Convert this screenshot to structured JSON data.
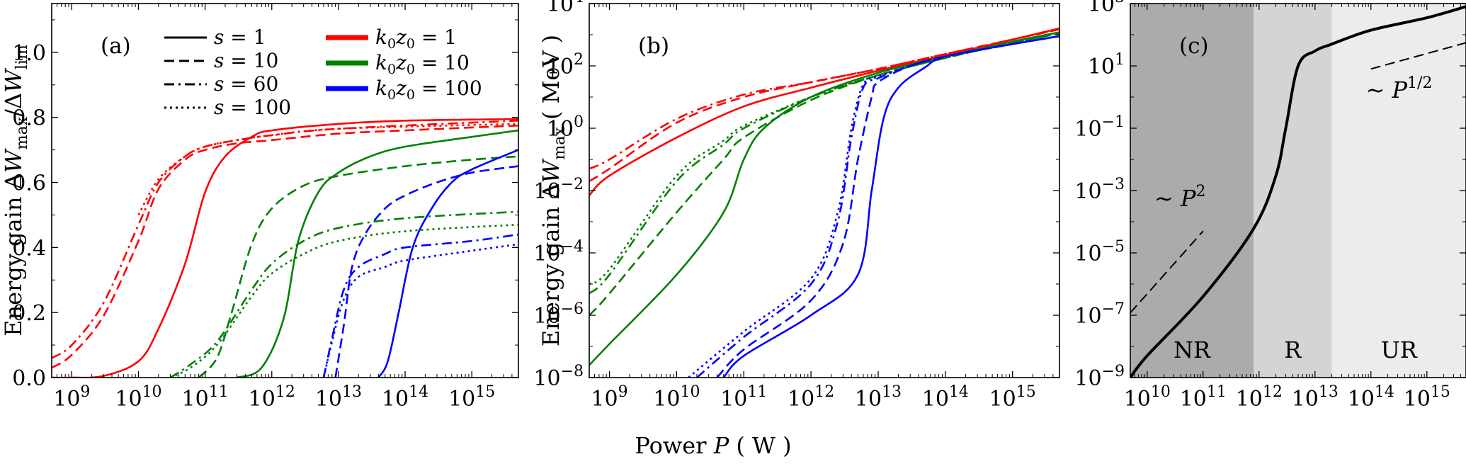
{
  "figure": {
    "x_label": "Power P ( W )"
  },
  "chart_data": [
    {
      "type": "line",
      "panel_label": "(a)",
      "ylabel": "Energy gain ΔW_max / ΔW_lim",
      "x_scale": "log",
      "xlim": [
        500000000.0,
        5000000000000000.0
      ],
      "ylim": [
        0,
        1.15
      ],
      "xticks": [
        "10^9",
        "10^10",
        "10^11",
        "10^12",
        "10^13",
        "10^14",
        "10^15"
      ],
      "yticks": [
        "0.0",
        "0.2",
        "0.4",
        "0.6",
        "0.8",
        "1.0"
      ],
      "legend_styles": [
        {
          "label": "s = 1",
          "dash": "solid"
        },
        {
          "label": "s = 10",
          "dash": "dashed"
        },
        {
          "label": "s = 60",
          "dash": "dashdot"
        },
        {
          "label": "s = 100",
          "dash": "dotted"
        }
      ],
      "legend_colors": [
        {
          "label": "k₀z₀ = 1",
          "color": "#ff0000"
        },
        {
          "label": "k₀z₀ = 10",
          "color": "#008000"
        },
        {
          "label": "k₀z₀ = 100",
          "color": "#0000ff"
        }
      ],
      "series": [
        {
          "name": "k₀z₀ = 1, s = 1",
          "color": "#ff0000",
          "dash": "solid",
          "x": [
            500000000.0,
            1000000000.0,
            3000000000.0,
            10000000000.0,
            20000000000.0,
            50000000000.0,
            100000000000.0,
            200000000000.0,
            500000000000.0,
            1000000000000.0,
            10000000000000.0,
            100000000000000.0,
            5000000000000000.0
          ],
          "y": [
            0.0,
            0.0,
            0.005,
            0.05,
            0.15,
            0.35,
            0.57,
            0.68,
            0.74,
            0.76,
            0.78,
            0.79,
            0.795
          ]
        },
        {
          "name": "k₀z₀ = 1, s = 10",
          "color": "#ff0000",
          "dash": "dashed",
          "x": [
            500000000.0,
            1000000000.0,
            3000000000.0,
            10000000000.0,
            20000000000.0,
            50000000000.0,
            100000000000.0,
            300000000000.0,
            1000000000000.0,
            10000000000000.0,
            100000000000000.0,
            5000000000000000.0
          ],
          "y": [
            0.03,
            0.07,
            0.19,
            0.42,
            0.58,
            0.67,
            0.7,
            0.72,
            0.73,
            0.75,
            0.76,
            0.775
          ]
        },
        {
          "name": "k₀z₀ = 1, s = 60",
          "color": "#ff0000",
          "dash": "dashdot",
          "x": [
            500000000.0,
            1000000000.0,
            3000000000.0,
            10000000000.0,
            20000000000.0,
            50000000000.0,
            100000000000.0,
            300000000000.0,
            1000000000000.0,
            10000000000000.0,
            5000000000000000.0
          ],
          "y": [
            0.06,
            0.1,
            0.23,
            0.47,
            0.6,
            0.68,
            0.71,
            0.73,
            0.745,
            0.765,
            0.79
          ]
        },
        {
          "name": "k₀z₀ = 1, s = 100",
          "color": "#ff0000",
          "dash": "dotted",
          "x": [
            10000000000.0,
            20000000000.0,
            50000000000.0,
            100000000000.0,
            300000000000.0,
            1000000000000.0,
            10000000000000.0,
            5000000000000000.0
          ],
          "y": [
            0.5,
            0.61,
            0.68,
            0.71,
            0.73,
            0.745,
            0.765,
            0.78
          ]
        },
        {
          "name": "k₀z₀ = 10, s = 1",
          "color": "#008000",
          "dash": "solid",
          "x": [
            300000000000.0,
            700000000000.0,
            1500000000000.0,
            2500000000000.0,
            5000000000000.0,
            10000000000000.0,
            30000000000000.0,
            100000000000000.0,
            1000000000000000.0,
            5000000000000000.0
          ],
          "y": [
            0.0,
            0.03,
            0.18,
            0.42,
            0.57,
            0.63,
            0.68,
            0.71,
            0.74,
            0.76
          ]
        },
        {
          "name": "k₀z₀ = 10, s = 10",
          "color": "#008000",
          "dash": "dashed",
          "x": [
            80000000000.0,
            150000000000.0,
            250000000000.0,
            500000000000.0,
            1000000000000.0,
            3000000000000.0,
            10000000000000.0,
            100000000000000.0,
            1000000000000000.0,
            5000000000000000.0
          ],
          "y": [
            0.0,
            0.06,
            0.2,
            0.41,
            0.52,
            0.59,
            0.62,
            0.65,
            0.67,
            0.68
          ]
        },
        {
          "name": "k₀z₀ = 10, s = 60",
          "color": "#008000",
          "dash": "dashdot",
          "x": [
            30000000000.0,
            60000000000.0,
            150000000000.0,
            500000000000.0,
            1000000000000.0,
            3000000000000.0,
            10000000000000.0,
            100000000000000.0,
            5000000000000000.0
          ],
          "y": [
            0.0,
            0.04,
            0.11,
            0.27,
            0.35,
            0.42,
            0.46,
            0.49,
            0.51
          ]
        },
        {
          "name": "k₀z₀ = 10, s = 100",
          "color": "#008000",
          "dash": "dotted",
          "x": [
            30000000000.0,
            60000000000.0,
            150000000000.0,
            500000000000.0,
            1000000000000.0,
            3000000000000.0,
            10000000000000.0,
            100000000000000.0,
            5000000000000000.0
          ],
          "y": [
            0.0,
            0.03,
            0.1,
            0.25,
            0.32,
            0.38,
            0.42,
            0.45,
            0.47
          ]
        },
        {
          "name": "k₀z₀ = 100, s = 1",
          "color": "#0000ff",
          "dash": "solid",
          "x": [
            40000000000000.0,
            55000000000000.0,
            80000000000000.0,
            130000000000000.0,
            250000000000000.0,
            500000000000000.0,
            1000000000000000.0,
            5000000000000000.0
          ],
          "y": [
            0.0,
            0.05,
            0.2,
            0.4,
            0.52,
            0.6,
            0.64,
            0.7
          ]
        },
        {
          "name": "k₀z₀ = 100, s = 10",
          "color": "#0000ff",
          "dash": "dashed",
          "x": [
            9000000000000.0,
            12000000000000.0,
            16000000000000.0,
            25000000000000.0,
            50000000000000.0,
            100000000000000.0,
            300000000000000.0,
            1000000000000000.0,
            5000000000000000.0
          ],
          "y": [
            0.0,
            0.16,
            0.34,
            0.44,
            0.52,
            0.56,
            0.6,
            0.63,
            0.65
          ]
        },
        {
          "name": "k₀z₀ = 100, s = 60",
          "color": "#0000ff",
          "dash": "dashdot",
          "x": [
            6000000000000.0,
            8000000000000.0,
            12000000000000.0,
            20000000000000.0,
            50000000000000.0,
            100000000000000.0,
            1000000000000000.0,
            5000000000000000.0
          ],
          "y": [
            0.0,
            0.12,
            0.27,
            0.34,
            0.38,
            0.4,
            0.42,
            0.44
          ]
        },
        {
          "name": "k₀z₀ = 100, s = 100",
          "color": "#0000ff",
          "dash": "dotted",
          "x": [
            6000000000000.0,
            8000000000000.0,
            12000000000000.0,
            20000000000000.0,
            50000000000000.0,
            100000000000000.0,
            1000000000000000.0,
            5000000000000000.0
          ],
          "y": [
            0.0,
            0.11,
            0.24,
            0.31,
            0.34,
            0.36,
            0.39,
            0.41
          ]
        }
      ]
    },
    {
      "type": "line",
      "panel_label": "(b)",
      "ylabel": "Energy gain ΔW_max ( MeV )",
      "x_scale": "log",
      "y_scale": "log",
      "xlim": [
        500000000.0,
        5000000000000000.0
      ],
      "ylim": [
        1e-08,
        10000.0
      ],
      "xticks": [
        "10^9",
        "10^10",
        "10^11",
        "10^12",
        "10^13",
        "10^14",
        "10^15"
      ],
      "yticks": [
        "10^-8",
        "10^-6",
        "10^-4",
        "10^-2",
        "10^0",
        "10^2",
        "10^4"
      ],
      "series": [
        {
          "name": "k₀z₀ = 1, s = 1",
          "color": "#ff0000",
          "dash": "solid",
          "x": [
            500000000.0,
            1000000000.0,
            10000000000.0,
            100000000000.0,
            1000000000000.0,
            10000000000000.0,
            100000000000000.0,
            1000000000000000.0,
            5000000000000000.0
          ],
          "y": [
            0.007,
            0.03,
            0.5,
            5,
            20,
            70,
            220,
            700,
            1600
          ]
        },
        {
          "name": "k₀z₀ = 1, s = 10",
          "color": "#ff0000",
          "dash": "dashed",
          "x": [
            500000000.0,
            1000000000.0,
            10000000000.0,
            100000000000.0,
            1000000000000.0,
            10000000000000.0,
            100000000000000.0,
            1000000000000000.0,
            5000000000000000.0
          ],
          "y": [
            0.02,
            0.05,
            1.5,
            10,
            30,
            80,
            240,
            700,
            1500
          ]
        },
        {
          "name": "k₀z₀ = 1, s = 60",
          "color": "#ff0000",
          "dash": "dashdot",
          "x": [
            500000000.0,
            1000000000.0,
            10000000000.0,
            100000000000.0,
            1000000000000.0,
            10000000000000.0,
            100000000000000.0,
            1000000000000000.0,
            5000000000000000.0
          ],
          "y": [
            0.05,
            0.1,
            2,
            12,
            30,
            80,
            240,
            700,
            1500
          ]
        },
        {
          "name": "k₀z₀ = 10, s = 1",
          "color": "#008000",
          "dash": "solid",
          "x": [
            500000000.0,
            1000000000.0,
            10000000000.0,
            50000000000.0,
            100000000000.0,
            200000000000.0,
            1000000000000.0,
            10000000000000.0,
            100000000000000.0,
            1000000000000000.0,
            5000000000000000.0
          ],
          "y": [
            2.5e-08,
            1.2e-07,
            2e-05,
            0.002,
            0.1,
            1,
            10,
            60,
            200,
            600,
            1200
          ]
        },
        {
          "name": "k₀z₀ = 10, s = 10",
          "color": "#008000",
          "dash": "dashed",
          "x": [
            500000000.0,
            1000000000.0,
            10000000000.0,
            50000000000.0,
            100000000000.0,
            1000000000000.0,
            10000000000000.0,
            100000000000000.0,
            1000000000000000.0,
            5000000000000000.0
          ],
          "y": [
            1e-06,
            5e-06,
            0.002,
            0.1,
            0.5,
            8,
            50,
            180,
            550,
            1100
          ]
        },
        {
          "name": "k₀z₀ = 10, s = 60",
          "color": "#008000",
          "dash": "dashdot",
          "x": [
            500000000.0,
            1000000000.0,
            10000000000.0,
            50000000000.0,
            100000000000.0,
            1000000000000.0,
            10000000000000.0,
            100000000000000.0,
            1000000000000000.0,
            5000000000000000.0
          ],
          "y": [
            5e-06,
            2e-05,
            0.02,
            0.3,
            1,
            10,
            50,
            180,
            550,
            1100
          ]
        },
        {
          "name": "k₀z₀ = 10, s = 100",
          "color": "#008000",
          "dash": "dotted",
          "x": [
            500000000.0,
            1000000000.0,
            10000000000.0,
            50000000000.0,
            100000000000.0,
            1000000000000.0,
            10000000000000.0,
            100000000000000.0,
            1000000000000000.0,
            5000000000000000.0
          ],
          "y": [
            1e-05,
            3e-05,
            0.03,
            0.4,
            1.2,
            10,
            50,
            180,
            550,
            1100
          ]
        },
        {
          "name": "k₀z₀ = 100, s = 1",
          "color": "#0000ff",
          "dash": "solid",
          "x": [
            50000000000.0,
            100000000000.0,
            1000000000000.0,
            5000000000000.0,
            8000000000000.0,
            12000000000000.0,
            20000000000000.0,
            50000000000000.0,
            100000000000000.0,
            1000000000000000.0,
            5000000000000000.0
          ],
          "y": [
            1e-08,
            5e-08,
            1e-06,
            2e-05,
            0.01,
            2,
            20,
            90,
            200,
            500,
            900
          ]
        },
        {
          "name": "k₀z₀ = 100, s = 10",
          "color": "#0000ff",
          "dash": "dashed",
          "x": [
            40000000000.0,
            100000000000.0,
            1000000000000.0,
            3000000000000.0,
            5000000000000.0,
            8000000000000.0,
            10000000000000.0,
            30000000000000.0,
            100000000000000.0,
            1000000000000000.0,
            5000000000000000.0
          ],
          "y": [
            1e-08,
            8e-08,
            3e-06,
            0.0002,
            0.1,
            10,
            30,
            100,
            200,
            500,
            900
          ]
        },
        {
          "name": "k₀z₀ = 100, s = 60",
          "color": "#0000ff",
          "dash": "dashdot",
          "x": [
            20000000000.0,
            100000000000.0,
            1000000000000.0,
            2500000000000.0,
            4000000000000.0,
            6000000000000.0,
            10000000000000.0,
            30000000000000.0,
            100000000000000.0,
            1000000000000000.0,
            5000000000000000.0
          ],
          "y": [
            1e-08,
            2e-07,
            1e-05,
            0.001,
            0.5,
            20,
            40,
            100,
            200,
            500,
            900
          ]
        },
        {
          "name": "k₀z₀ = 100, s = 100",
          "color": "#0000ff",
          "dash": "dotted",
          "x": [
            15000000000.0,
            100000000000.0,
            1000000000000.0,
            2500000000000.0,
            4000000000000.0,
            6000000000000.0,
            10000000000000.0,
            30000000000000.0,
            100000000000000.0,
            1000000000000000.0,
            5000000000000000.0
          ],
          "y": [
            1e-08,
            3e-07,
            1.5e-05,
            0.002,
            1,
            25,
            45,
            100,
            200,
            500,
            900
          ]
        }
      ]
    },
    {
      "type": "line",
      "panel_label": "(c)",
      "x_scale": "log",
      "y_scale": "log",
      "xlim": [
        5000000000.0,
        5000000000000000.0
      ],
      "ylim": [
        1e-09,
        1000.0
      ],
      "xticks": [
        "10^10",
        "10^11",
        "10^12",
        "10^13",
        "10^14",
        "10^15"
      ],
      "yticks": [
        "10^-9",
        "10^-7",
        "10^-5",
        "10^-3",
        "10^-1",
        "10^1",
        "10^3"
      ],
      "regions": [
        {
          "label": "NR",
          "from": 5000000000.0,
          "to": 800000000000.0,
          "color": "#ababab"
        },
        {
          "label": "R",
          "from": 800000000000.0,
          "to": 20000000000000.0,
          "color": "#d4d4d4"
        },
        {
          "label": "UR",
          "from": 20000000000000.0,
          "to": 5000000000000000.0,
          "color": "#ececec"
        }
      ],
      "annotations": [
        {
          "text": "~ P^2",
          "exponent": "2",
          "near_x": 50000000000.0,
          "near_y": 0.0001
        },
        {
          "text": "~ P^1/2",
          "exponent": "1/2",
          "near_x": 300000000000000.0,
          "near_y": 0.3
        }
      ],
      "series": [
        {
          "name": "main",
          "color": "#000000",
          "dash": "solid",
          "width": 4,
          "x": [
            5000000000.0,
            10000000000.0,
            100000000000.0,
            800000000000.0,
            2000000000000.0,
            3000000000000.0,
            5000000000000.0,
            10000000000000.0,
            20000000000000.0,
            100000000000000.0,
            1000000000000000.0,
            5000000000000000.0
          ],
          "y": [
            1e-09,
            5e-09,
            4e-07,
            6e-05,
            0.003,
            0.1,
            10,
            30,
            50,
            140,
            350,
            800
          ]
        },
        {
          "name": "P^2 guide",
          "color": "#000000",
          "dash": "dashed",
          "width": 2,
          "x": [
            5000000000.0,
            100000000000.0
          ],
          "y": [
            1.2e-07,
            5e-05
          ]
        },
        {
          "name": "P^1/2 guide",
          "color": "#000000",
          "dash": "dashed",
          "width": 2,
          "x": [
            100000000000000.0,
            5000000000000000.0
          ],
          "y": [
            8,
            55
          ]
        }
      ]
    }
  ]
}
